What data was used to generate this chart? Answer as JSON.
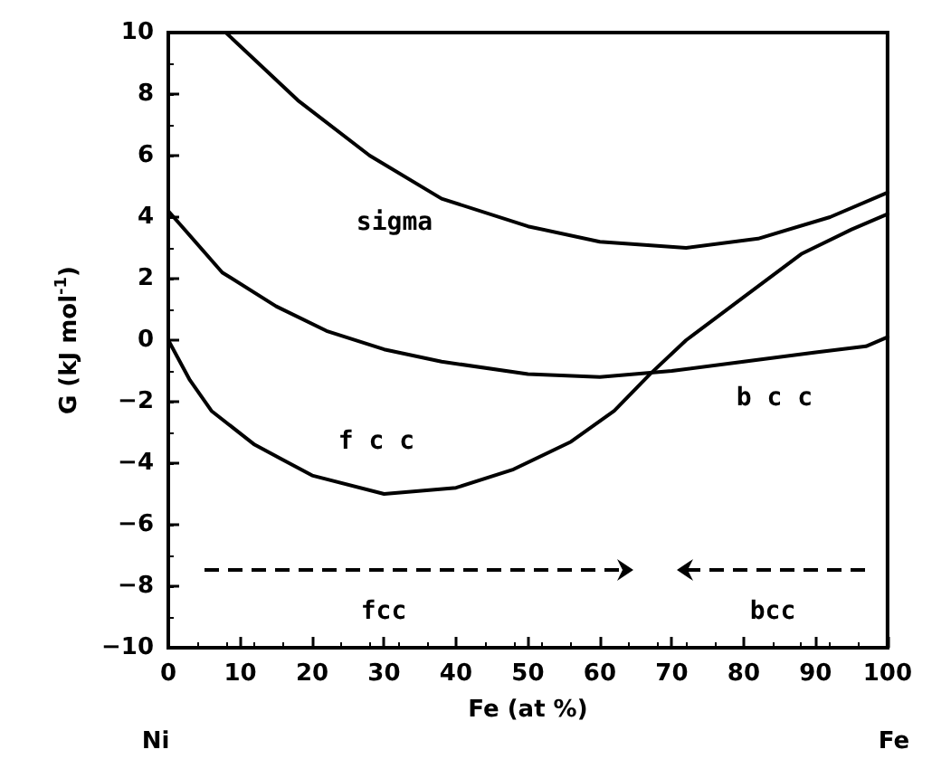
{
  "chart_data": {
    "type": "line",
    "xlabel": "Fe (at %)",
    "ylabel": "G (kJ mol$^{-1}$)",
    "xlim": [
      0,
      100
    ],
    "xticks": [
      0,
      10,
      20,
      30,
      40,
      50,
      60,
      70,
      80,
      90,
      100
    ],
    "ylim": [
      -10,
      10
    ],
    "yticks": [
      -10,
      -8,
      -6,
      -4,
      -2,
      0,
      2,
      4,
      6,
      8,
      10
    ],
    "grid": false,
    "marker": "none",
    "line_style": "solid",
    "series": [
      {
        "color": "#000000",
        "x": [
          8,
          18,
          28,
          38,
          50,
          60,
          72,
          82,
          92,
          100
        ],
        "values": [
          10,
          7.8,
          6.0,
          4.6,
          3.7,
          3.2,
          3.0,
          3.3,
          4.0,
          4.8
        ]
      },
      {
        "color": "#000000",
        "x": [
          0,
          7.5,
          15,
          22,
          30,
          38,
          50,
          60,
          70,
          80,
          90,
          97,
          100
        ],
        "values": [
          4.2,
          2.2,
          1.1,
          0.3,
          -0.3,
          -0.7,
          -1.1,
          -1.2,
          -1.0,
          -0.7,
          -0.4,
          -0.2,
          0.1
        ]
      },
      {
        "color": "#000000",
        "x": [
          0,
          3,
          6,
          12,
          20,
          30,
          40,
          48,
          56,
          62,
          67,
          72,
          80,
          88,
          95,
          100
        ],
        "values": [
          0,
          -1.3,
          -2.3,
          -3.4,
          -4.4,
          -5.0,
          -4.8,
          -4.2,
          -3.3,
          -2.3,
          -1.1,
          0.0,
          1.4,
          2.8,
          3.6,
          4.1
        ]
      }
    ],
    "annotations": [
      "sigma",
      "b c c",
      "f c c",
      "fcc",
      "bcc",
      "Ni",
      "Fe"
    ]
  }
}
